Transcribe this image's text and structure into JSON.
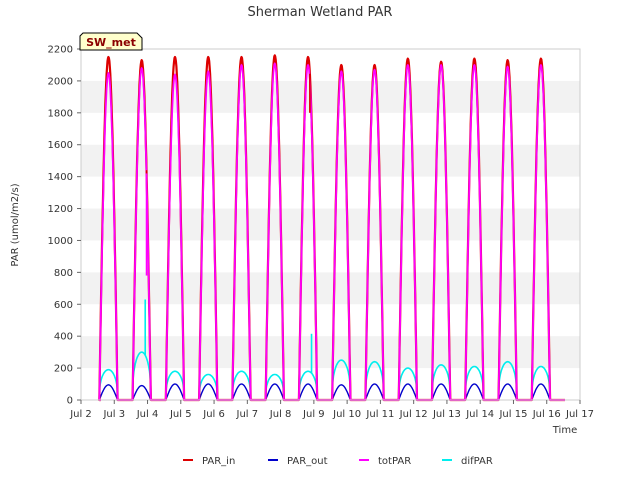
{
  "chart_data": {
    "type": "line",
    "title": "Sherman Wetland PAR",
    "badge": "SW_met",
    "xlabel": "Time",
    "ylabel": "PAR (umol/m2/s)",
    "xlim": [
      2,
      17
    ],
    "ylim": [
      0,
      2200
    ],
    "yticks": [
      0,
      200,
      400,
      600,
      800,
      1000,
      1200,
      1400,
      1600,
      1800,
      2000,
      2200
    ],
    "xticks": [
      2,
      3,
      4,
      5,
      6,
      7,
      8,
      9,
      10,
      11,
      12,
      13,
      14,
      15,
      16,
      17
    ],
    "xtick_labels": [
      "Jul 2",
      "Jul 3",
      "Jul 4",
      "Jul 5",
      "Jul 6",
      "Jul 7",
      "Jul 8",
      "Jul 9",
      "Jul 10",
      "Jul 11",
      "Jul 12",
      "Jul 13",
      "Jul 14",
      "Jul 15",
      "Jul 16",
      "Jul 17"
    ],
    "grid": "horizontal bands",
    "legend_position": "bottom",
    "colors": {
      "PAR_in": "#dd0000",
      "PAR_out": "#0000cc",
      "totPAR": "#ff00ff",
      "difPAR": "#00eeee",
      "band": "#f2f2f2",
      "badge_fill": "#ffffcc"
    },
    "day_starts": [
      2.55,
      3.55,
      4.55,
      5.55,
      6.55,
      7.55,
      8.55,
      9.55,
      10.55,
      11.55,
      12.55,
      13.55,
      14.55,
      15.55
    ],
    "day_length": 0.55,
    "series": [
      {
        "name": "PAR_in",
        "peaks": [
          2150,
          2130,
          2150,
          2150,
          2150,
          2160,
          2150,
          2100,
          2100,
          2140,
          2120,
          2140,
          2130,
          2140
        ]
      },
      {
        "name": "PAR_out",
        "peaks": [
          95,
          90,
          100,
          100,
          100,
          100,
          100,
          95,
          100,
          100,
          100,
          100,
          100,
          100
        ]
      },
      {
        "name": "totPAR",
        "peaks": [
          2050,
          2080,
          2040,
          2060,
          2100,
          2110,
          2100,
          2060,
          2070,
          2100,
          2100,
          2100,
          2090,
          2100
        ]
      },
      {
        "name": "difPAR",
        "peaks": [
          190,
          300,
          180,
          160,
          180,
          160,
          180,
          250,
          240,
          200,
          220,
          210,
          240,
          210
        ]
      }
    ],
    "annotations": [
      {
        "series": "difPAR",
        "x": 3.93,
        "y": 630
      },
      {
        "series": "difPAR",
        "x": 8.93,
        "y": 415
      },
      {
        "series": "totPAR",
        "x": 3.97,
        "y": 780
      },
      {
        "series": "PAR_in",
        "x": 3.97,
        "y": 1420
      },
      {
        "series": "PAR_in",
        "x": 8.88,
        "y": 1800
      }
    ]
  }
}
